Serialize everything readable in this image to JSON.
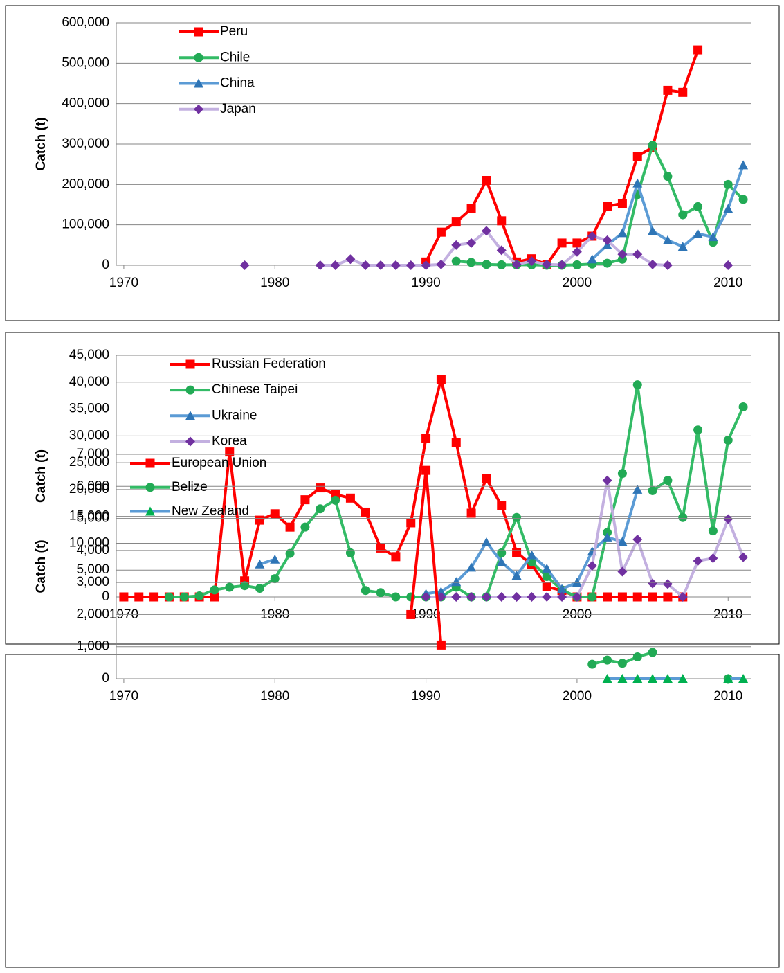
{
  "chart_data": [
    {
      "type": "line",
      "y_label": "Catch (t)",
      "grid": true,
      "legend": "upper left",
      "x": [
        1970,
        1971,
        1972,
        1973,
        1974,
        1975,
        1976,
        1977,
        1978,
        1979,
        1980,
        1981,
        1982,
        1983,
        1984,
        1985,
        1986,
        1987,
        1988,
        1989,
        1990,
        1991,
        1992,
        1993,
        1994,
        1995,
        1996,
        1997,
        1998,
        1999,
        2000,
        2001,
        2002,
        2003,
        2004,
        2005,
        2006,
        2007,
        2008,
        2009,
        2010,
        2011
      ],
      "xlim": [
        1969.5,
        2011.5
      ],
      "xticks": [
        1970,
        1980,
        1990,
        2000,
        2010
      ],
      "ylim": [
        0,
        600000
      ],
      "yticks": [
        0,
        {
          "value": 100000,
          "label": "100,000"
        },
        {
          "value": 200000,
          "label": "200,000"
        },
        {
          "value": 300000,
          "label": "300,000"
        },
        {
          "value": 400000,
          "label": "400,000"
        },
        {
          "value": 500000,
          "label": "500,000"
        },
        {
          "value": 600000,
          "label": "600,000"
        }
      ],
      "series": [
        {
          "name": "Peru",
          "color": "#ff0000",
          "marker_color": "#ff0000",
          "marker": "square",
          "values": [
            null,
            null,
            null,
            null,
            null,
            null,
            null,
            null,
            null,
            null,
            null,
            null,
            null,
            null,
            null,
            null,
            null,
            null,
            null,
            null,
            8000,
            82000,
            107000,
            140000,
            210000,
            110000,
            8000,
            16000,
            2000,
            55000,
            55000,
            72000,
            146000,
            153000,
            270000,
            292000,
            433000,
            428000,
            533000,
            null,
            null,
            null
          ]
        },
        {
          "name": "Chile",
          "color": "#33bb66",
          "marker_color": "#22aa55",
          "marker": "circle",
          "values": [
            null,
            null,
            null,
            null,
            null,
            null,
            null,
            null,
            null,
            null,
            null,
            null,
            null,
            null,
            null,
            null,
            null,
            null,
            null,
            null,
            null,
            null,
            10000,
            7000,
            2000,
            1000,
            1000,
            1000,
            0,
            0,
            1000,
            3000,
            5000,
            15000,
            175000,
            297000,
            220000,
            125000,
            145000,
            57000,
            200000,
            163000
          ]
        },
        {
          "name": "China",
          "color": "#5b9bd5",
          "marker_color": "#2e75b6",
          "marker": "triangle",
          "values": [
            null,
            null,
            null,
            null,
            null,
            null,
            null,
            null,
            null,
            null,
            null,
            null,
            null,
            null,
            null,
            null,
            null,
            null,
            null,
            null,
            null,
            null,
            null,
            null,
            null,
            null,
            null,
            null,
            null,
            null,
            null,
            15000,
            50000,
            80000,
            203000,
            85000,
            62000,
            46000,
            78000,
            70000,
            140000,
            248000
          ]
        },
        {
          "name": "Japan",
          "color": "#c3b0e0",
          "marker_color": "#7030a0",
          "marker": "diamond",
          "values": [
            null,
            null,
            null,
            null,
            null,
            null,
            null,
            null,
            0,
            null,
            null,
            null,
            null,
            0,
            0,
            15000,
            0,
            0,
            0,
            0,
            0,
            2000,
            50000,
            55000,
            85000,
            37000,
            2000,
            10000,
            2000,
            1000,
            33000,
            72000,
            62000,
            27000,
            27000,
            2000,
            0,
            null,
            null,
            null,
            0,
            null
          ]
        }
      ]
    },
    {
      "type": "line",
      "y_label": "Catch (t)",
      "grid": true,
      "legend": "upper left",
      "x": [
        1970,
        1971,
        1972,
        1973,
        1974,
        1975,
        1976,
        1977,
        1978,
        1979,
        1980,
        1981,
        1982,
        1983,
        1984,
        1985,
        1986,
        1987,
        1988,
        1989,
        1990,
        1991,
        1992,
        1993,
        1994,
        1995,
        1996,
        1997,
        1998,
        1999,
        2000,
        2001,
        2002,
        2003,
        2004,
        2005,
        2006,
        2007,
        2008,
        2009,
        2010,
        2011
      ],
      "xlim": [
        1969.5,
        2011.5
      ],
      "xticks": [
        1970,
        1980,
        1990,
        2000,
        2010
      ],
      "ylim": [
        0,
        45000
      ],
      "yticks": [
        0,
        {
          "value": 5000,
          "label": "5,000"
        },
        {
          "value": 10000,
          "label": "10,000"
        },
        {
          "value": 15000,
          "label": "15,000"
        },
        {
          "value": 20000,
          "label": "20,000"
        },
        {
          "value": 25000,
          "label": "25,000"
        },
        {
          "value": 30000,
          "label": "30,000"
        },
        {
          "value": 35000,
          "label": "35,000"
        },
        {
          "value": 40000,
          "label": "40,000"
        },
        {
          "value": 45000,
          "label": "45,000"
        }
      ],
      "series": [
        {
          "name": "Russian Federation",
          "color": "#ff0000",
          "marker_color": "#ff0000",
          "marker": "square",
          "values": [
            0,
            0,
            0,
            0,
            0,
            0,
            0,
            27000,
            3000,
            14300,
            15500,
            13000,
            18100,
            20300,
            19100,
            18400,
            15800,
            9100,
            7500,
            13800,
            29500,
            40500,
            28800,
            15600,
            22000,
            17000,
            8300,
            6000,
            1900,
            1200,
            0,
            0,
            0,
            0,
            0,
            0,
            0,
            0,
            null,
            null,
            null,
            null
          ]
        },
        {
          "name": "Chinese Taipei",
          "color": "#33bb66",
          "marker_color": "#22aa55",
          "marker": "circle",
          "values": [
            null,
            null,
            null,
            0,
            0,
            200,
            1300,
            1800,
            2100,
            1600,
            3400,
            8100,
            13000,
            16400,
            18000,
            8200,
            1200,
            800,
            0,
            0,
            0,
            0,
            1800,
            0,
            0,
            8200,
            14800,
            6500,
            3800,
            1300,
            0,
            0,
            12000,
            23000,
            39500,
            19800,
            21700,
            14800,
            31100,
            12300,
            29200,
            35400
          ]
        },
        {
          "name": "Ukraine",
          "color": "#5b9bd5",
          "marker_color": "#2e75b6",
          "marker": "triangle",
          "values": [
            null,
            null,
            null,
            null,
            null,
            null,
            null,
            null,
            null,
            6100,
            7000,
            null,
            null,
            null,
            null,
            null,
            null,
            null,
            null,
            null,
            600,
            1000,
            2800,
            5500,
            10200,
            6500,
            4000,
            7800,
            5300,
            1500,
            2700,
            8500,
            11100,
            10300,
            20000,
            null,
            null,
            null,
            null,
            null,
            null,
            null
          ]
        },
        {
          "name": "Korea",
          "color": "#c3b0e0",
          "marker_color": "#7030a0",
          "marker": "diamond",
          "values": [
            null,
            null,
            null,
            null,
            null,
            null,
            null,
            null,
            null,
            null,
            null,
            null,
            null,
            null,
            null,
            null,
            null,
            null,
            null,
            null,
            0,
            0,
            0,
            0,
            0,
            0,
            0,
            0,
            0,
            0,
            0,
            5800,
            21700,
            4700,
            10700,
            2500,
            2400,
            0,
            6700,
            7200,
            14500,
            7400
          ]
        }
      ]
    },
    {
      "type": "line",
      "y_label": "Catch (t)",
      "grid": true,
      "legend": "upper left",
      "x": [
        1970,
        1971,
        1972,
        1973,
        1974,
        1975,
        1976,
        1977,
        1978,
        1979,
        1980,
        1981,
        1982,
        1983,
        1984,
        1985,
        1986,
        1987,
        1988,
        1989,
        1990,
        1991,
        1992,
        1993,
        1994,
        1995,
        1996,
        1997,
        1998,
        1999,
        2000,
        2001,
        2002,
        2003,
        2004,
        2005,
        2006,
        2007,
        2008,
        2009,
        2010,
        2011
      ],
      "xlim": [
        1969.5,
        2011.5
      ],
      "xticks": [
        1970,
        1980,
        1990,
        2000,
        2010
      ],
      "ylim": [
        0,
        7000
      ],
      "yticks": [
        0,
        {
          "value": 1000,
          "label": "1,000"
        },
        {
          "value": 2000,
          "label": "2,000"
        },
        {
          "value": 3000,
          "label": "3,000"
        },
        {
          "value": 4000,
          "label": "4,000"
        },
        {
          "value": 5000,
          "label": "5,000"
        },
        {
          "value": 6000,
          "label": "6,000"
        },
        {
          "value": 7000,
          "label": "7,000"
        }
      ],
      "series": [
        {
          "name": "European Union",
          "color": "#ff0000",
          "marker_color": "#ff0000",
          "marker": "square",
          "values": [
            null,
            null,
            null,
            null,
            null,
            null,
            null,
            null,
            null,
            null,
            null,
            null,
            null,
            null,
            null,
            null,
            null,
            null,
            null,
            2000,
            6500,
            1050,
            null,
            null,
            null,
            null,
            null,
            null,
            null,
            null,
            null,
            null,
            null,
            null,
            null,
            null,
            null,
            null,
            null,
            null,
            null,
            null
          ]
        },
        {
          "name": "Belize",
          "color": "#33bb66",
          "marker_color": "#22aa55",
          "marker": "circle",
          "values": [
            null,
            null,
            null,
            null,
            null,
            null,
            null,
            null,
            null,
            null,
            null,
            null,
            null,
            null,
            null,
            null,
            null,
            null,
            null,
            null,
            null,
            null,
            null,
            null,
            null,
            null,
            null,
            null,
            null,
            null,
            null,
            450,
            580,
            480,
            680,
            820,
            null,
            null,
            null,
            null,
            0,
            null
          ]
        },
        {
          "name": "New Zealand",
          "color": "#5b9bd5",
          "marker_color": "#00b050",
          "marker": "triangle",
          "values": [
            null,
            null,
            null,
            null,
            null,
            null,
            null,
            null,
            null,
            null,
            null,
            null,
            null,
            null,
            null,
            null,
            null,
            null,
            null,
            null,
            null,
            null,
            null,
            null,
            null,
            null,
            null,
            null,
            null,
            null,
            null,
            null,
            0,
            0,
            0,
            0,
            0,
            0,
            null,
            null,
            0,
            0
          ]
        }
      ]
    }
  ]
}
